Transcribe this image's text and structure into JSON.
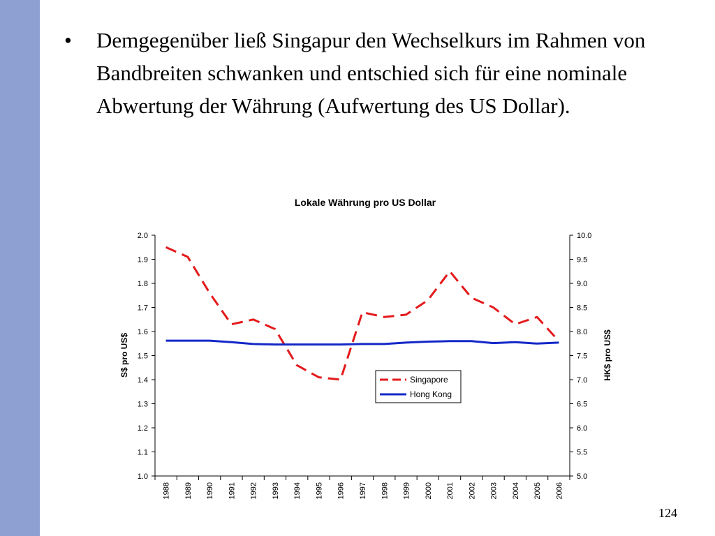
{
  "slide": {
    "bullet_symbol": "•",
    "bullet_text": "Demgegenüber ließ Singapur den Wechselkurs im Rahmen von Bandbreiten schwanken und entschied sich für eine nominale Abwertung der Währung (Aufwertung des US Dollar).",
    "page_number": "124",
    "sidebar_color": "#8e9fd1"
  },
  "chart_data": {
    "type": "line",
    "title": "Lokale Währung pro US Dollar",
    "ylabel": "S$ pro US$",
    "ylabel_right": "HK$ pro US$",
    "categories": [
      "1988",
      "1989",
      "1990",
      "1991",
      "1992",
      "1993",
      "1994",
      "1995",
      "1996",
      "1997",
      "1998",
      "1999",
      "2000",
      "2001",
      "2002",
      "2003",
      "2004",
      "2005",
      "2006"
    ],
    "ylim": [
      1.0,
      2.0
    ],
    "ylim_right": [
      5.0,
      10.0
    ],
    "yticks": [
      "1.0",
      "1.1",
      "1.2",
      "1.3",
      "1.4",
      "1.5",
      "1.6",
      "1.7",
      "1.8",
      "1.9",
      "2.0"
    ],
    "yticks_right": [
      "5.0",
      "5.5",
      "6.0",
      "6.5",
      "7.0",
      "7.5",
      "8.0",
      "8.5",
      "9.0",
      "9.5",
      "10.0"
    ],
    "grid": false,
    "legend_position": "center-right",
    "series": [
      {
        "name": "Singapore",
        "axis": "left",
        "color": "#e31a1c",
        "style": "dashed",
        "values": [
          1.95,
          1.91,
          1.76,
          1.63,
          1.65,
          1.61,
          1.46,
          1.41,
          1.4,
          1.68,
          1.66,
          1.67,
          1.73,
          1.85,
          1.74,
          1.7,
          1.63,
          1.66,
          1.56
        ]
      },
      {
        "name": "Hong Kong",
        "axis": "right",
        "color": "#1428c8",
        "style": "solid",
        "values": [
          7.81,
          7.81,
          7.81,
          7.78,
          7.74,
          7.73,
          7.73,
          7.73,
          7.73,
          7.74,
          7.74,
          7.77,
          7.79,
          7.8,
          7.8,
          7.76,
          7.78,
          7.75,
          7.77
        ]
      }
    ]
  }
}
